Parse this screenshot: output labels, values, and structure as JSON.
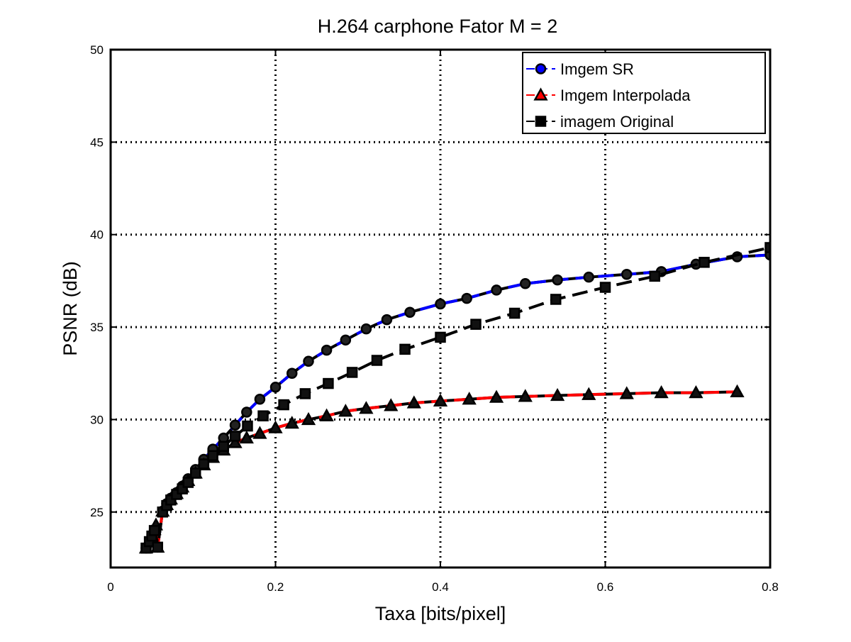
{
  "chart_data": {
    "type": "line",
    "title": "H.264 carphone Fator M = 2",
    "xlabel": "Taxa [bits/pixel]",
    "ylabel": "PSNR (dB)",
    "xlim": [
      0,
      0.8
    ],
    "ylim": [
      22,
      50
    ],
    "xticks": [
      0,
      0.2,
      0.4,
      0.6,
      0.8
    ],
    "xtick_labels": [
      "0",
      "0.2",
      "0.4",
      "0.6",
      "0.8"
    ],
    "yticks": [
      25,
      30,
      35,
      40,
      45,
      50
    ],
    "ytick_labels": [
      "25",
      "30",
      "35",
      "40",
      "45",
      "50"
    ],
    "grid": true,
    "legend_position": "top-right",
    "series": [
      {
        "name": "Imgem SR",
        "color": "#0000ff",
        "marker": "circle",
        "x": [
          0.0439,
          0.0471,
          0.0505,
          0.0542,
          0.0578,
          0.0621,
          0.0662,
          0.071,
          0.0768,
          0.0843,
          0.0925,
          0.1009,
          0.1109,
          0.1235,
          0.1385,
          0.1543,
          0.1735,
          0.1938,
          0.2149,
          0.2401,
          0.2665,
          0.2976,
          0.3289,
          0.3618,
          0.3969,
          0.4366,
          0.4788,
          0.5218,
          0.5693,
          0.6203,
          0.6712,
          0.7251,
          0.7794,
          0.8
        ],
        "y": [
          23.04,
          23.35,
          23.75,
          24.05,
          24.35,
          25.04,
          25.4,
          25.75,
          26.05,
          26.35,
          26.85,
          27.25,
          27.85,
          28.45,
          29.1,
          29.7,
          30.4,
          31.1,
          31.75,
          32.5,
          33.15,
          33.75,
          34.3,
          34.9,
          35.4,
          35.8,
          36.25,
          36.55,
          37.0,
          37.35,
          37.55,
          37.7,
          37.85,
          38.0
        ],
        "note_x_lim_only": true
      }
    ],
    "series_full": [
      {
        "name": "Imgem SR",
        "color": "#0000ff",
        "marker": "circle",
        "points": [
          [
            0.043,
            23.05
          ],
          [
            0.047,
            23.35
          ],
          [
            0.05,
            23.75
          ],
          [
            0.053,
            24.05
          ],
          [
            0.057,
            23.1
          ],
          [
            0.063,
            25.05
          ],
          [
            0.068,
            25.45
          ],
          [
            0.073,
            25.75
          ],
          [
            0.08,
            26.05
          ],
          [
            0.087,
            26.4
          ],
          [
            0.094,
            26.8
          ],
          [
            0.103,
            27.3
          ],
          [
            0.113,
            27.85
          ],
          [
            0.124,
            28.4
          ],
          [
            0.137,
            29.0
          ],
          [
            0.151,
            29.7
          ],
          [
            0.165,
            30.4
          ],
          [
            0.181,
            31.1
          ],
          [
            0.2,
            31.75
          ],
          [
            0.22,
            32.5
          ],
          [
            0.24,
            33.15
          ],
          [
            0.262,
            33.75
          ],
          [
            0.285,
            34.3
          ],
          [
            0.31,
            34.9
          ],
          [
            0.335,
            35.4
          ],
          [
            0.363,
            35.8
          ],
          [
            0.4,
            36.25
          ],
          [
            0.432,
            36.55
          ],
          [
            0.468,
            37.0
          ],
          [
            0.503,
            37.35
          ],
          [
            0.542,
            37.55
          ],
          [
            0.58,
            37.7
          ],
          [
            0.626,
            37.85
          ],
          [
            0.668,
            38.0
          ],
          [
            0.71,
            38.4
          ],
          [
            0.76,
            38.8
          ],
          [
            0.8,
            38.9
          ]
        ]
      },
      {
        "name": "Imgem Interpolada",
        "color": "#ff0000",
        "marker": "triangle",
        "points": [
          [
            0.043,
            23.05
          ],
          [
            0.047,
            23.4
          ],
          [
            0.05,
            23.75
          ],
          [
            0.053,
            24.05
          ],
          [
            0.055,
            24.3
          ],
          [
            0.057,
            23.1
          ],
          [
            0.063,
            25.05
          ],
          [
            0.068,
            25.4
          ],
          [
            0.073,
            25.7
          ],
          [
            0.08,
            26.0
          ],
          [
            0.087,
            26.35
          ],
          [
            0.094,
            26.7
          ],
          [
            0.103,
            27.1
          ],
          [
            0.113,
            27.55
          ],
          [
            0.124,
            27.95
          ],
          [
            0.137,
            28.35
          ],
          [
            0.151,
            28.75
          ],
          [
            0.165,
            29.0
          ],
          [
            0.181,
            29.25
          ],
          [
            0.2,
            29.55
          ],
          [
            0.22,
            29.8
          ],
          [
            0.24,
            30.0
          ],
          [
            0.262,
            30.2
          ],
          [
            0.285,
            30.45
          ],
          [
            0.31,
            30.6
          ],
          [
            0.34,
            30.75
          ],
          [
            0.368,
            30.9
          ],
          [
            0.4,
            31.0
          ],
          [
            0.435,
            31.1
          ],
          [
            0.468,
            31.2
          ],
          [
            0.503,
            31.25
          ],
          [
            0.542,
            31.3
          ],
          [
            0.58,
            31.35
          ],
          [
            0.626,
            31.4
          ],
          [
            0.668,
            31.45
          ],
          [
            0.71,
            31.45
          ],
          [
            0.76,
            31.5
          ]
        ]
      },
      {
        "name": "imagem Original",
        "color": "#000000",
        "marker": "square",
        "points": [
          [
            0.043,
            23.05
          ],
          [
            0.047,
            23.4
          ],
          [
            0.05,
            23.7
          ],
          [
            0.053,
            24.0
          ],
          [
            0.057,
            23.1
          ],
          [
            0.063,
            25.0
          ],
          [
            0.068,
            25.35
          ],
          [
            0.073,
            25.65
          ],
          [
            0.08,
            25.95
          ],
          [
            0.087,
            26.25
          ],
          [
            0.094,
            26.6
          ],
          [
            0.103,
            27.1
          ],
          [
            0.113,
            27.6
          ],
          [
            0.124,
            28.05
          ],
          [
            0.137,
            28.55
          ],
          [
            0.151,
            29.1
          ],
          [
            0.166,
            29.65
          ],
          [
            0.185,
            30.2
          ],
          [
            0.21,
            30.8
          ],
          [
            0.236,
            31.4
          ],
          [
            0.264,
            31.95
          ],
          [
            0.293,
            32.55
          ],
          [
            0.323,
            33.2
          ],
          [
            0.357,
            33.8
          ],
          [
            0.4,
            34.45
          ],
          [
            0.443,
            35.15
          ],
          [
            0.49,
            35.75
          ],
          [
            0.54,
            36.5
          ],
          [
            0.6,
            37.15
          ],
          [
            0.66,
            37.75
          ],
          [
            0.72,
            38.5
          ],
          [
            0.8,
            39.3
          ]
        ]
      }
    ]
  }
}
